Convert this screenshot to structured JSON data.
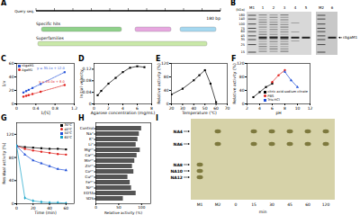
{
  "chart_data": [
    {
      "panel": "C",
      "type": "line",
      "x_label": "1/[S]",
      "y_label": "1/v",
      "xlim": [
        0,
        1.2
      ],
      "xticks": [
        0,
        0.4,
        0.8,
        1.2
      ],
      "ylim": [
        0,
        60
      ],
      "yticks": [
        0,
        20,
        40,
        60
      ],
      "legend": "top-left",
      "series": [
        {
          "name": "rAgaM1",
          "color": "#1f4fd8",
          "marker": "square",
          "line_style": "dashed",
          "x": [
            0.14,
            0.2,
            0.25,
            0.33,
            0.5,
            1
          ],
          "values": [
            16.9,
            19,
            20.8,
            23.6,
            29.5,
            47
          ],
          "equation": "y = 35.1x + 12.0"
        },
        {
          "name": "AgaM1",
          "color": "#e0211d",
          "marker": "circle",
          "line_style": "dashed",
          "x": [
            0.14,
            0.2,
            0.25,
            0.33,
            0.5,
            1
          ],
          "values": [
            10.8,
            12,
            13,
            14.6,
            18,
            28
          ],
          "equation": "y = 20.0x + 8.0"
        }
      ]
    },
    {
      "panel": "D",
      "type": "line",
      "x_label": "Agarose concentration (mg/mL)",
      "y_label": "Initial velocity",
      "xlim": [
        0,
        8
      ],
      "xticks": [
        0,
        2,
        4,
        6,
        8
      ],
      "ylim": [
        0,
        0.14
      ],
      "yticks": [
        0,
        0.04,
        0.08,
        0.12
      ],
      "x": [
        0.5,
        1,
        2,
        3,
        4,
        5,
        6,
        7
      ],
      "values": [
        0.03,
        0.045,
        0.07,
        0.09,
        0.11,
        0.125,
        0.13,
        0.127
      ],
      "color": "#000000",
      "marker": "square"
    },
    {
      "panel": "E",
      "type": "line",
      "x_label": "Temperature (℃)",
      "y_label": "Relative activity (%)",
      "xlim": [
        20,
        70
      ],
      "xticks": [
        20,
        30,
        40,
        50,
        60,
        70
      ],
      "ylim": [
        0,
        120
      ],
      "yticks": [
        0,
        40,
        80,
        120
      ],
      "x": [
        20,
        30,
        40,
        45,
        50,
        55,
        60
      ],
      "values": [
        28,
        45,
        70,
        85,
        100,
        60,
        5
      ],
      "color": "#000000",
      "marker": "square"
    },
    {
      "panel": "F",
      "type": "line",
      "x_label": "pH",
      "y_label": "Relative activity (%)",
      "xlim": [
        2,
        12
      ],
      "xticks": [
        2,
        4,
        6,
        8,
        10,
        12
      ],
      "ylim": [
        0,
        120
      ],
      "yticks": [
        0,
        40,
        80,
        120
      ],
      "legend": "bottom-right",
      "series": [
        {
          "name": "citric acid-sodium citrate",
          "color": "#000000",
          "marker": "square",
          "x": [
            3,
            4,
            5,
            6
          ],
          "values": [
            20,
            35,
            50,
            60
          ]
        },
        {
          "name": "PBS",
          "color": "#e0211d",
          "marker": "circle",
          "x": [
            6,
            7,
            8
          ],
          "values": [
            65,
            85,
            100
          ]
        },
        {
          "name": "Tris-HCl",
          "color": "#1f4fd8",
          "marker": "triangle",
          "x": [
            8,
            9,
            10
          ],
          "values": [
            95,
            70,
            50
          ]
        }
      ]
    },
    {
      "panel": "G",
      "type": "line",
      "x_label": "Time (min)",
      "y_label": "Residual activity (%)",
      "xlim": [
        0,
        70
      ],
      "xticks": [
        0,
        20,
        40,
        60
      ],
      "ylim": [
        0,
        140
      ],
      "yticks": [
        0,
        40,
        80,
        120
      ],
      "legend": "top-right",
      "series": [
        {
          "name": "30℃",
          "color": "#000000",
          "marker": "square",
          "x": [
            0,
            10,
            20,
            30,
            40,
            50,
            60
          ],
          "values": [
            100,
            98,
            97,
            96,
            95,
            95,
            94
          ]
        },
        {
          "name": "40℃",
          "color": "#e0211d",
          "marker": "circle",
          "x": [
            0,
            10,
            20,
            30,
            40,
            50,
            60
          ],
          "values": [
            100,
            95,
            92,
            90,
            88,
            86,
            85
          ]
        },
        {
          "name": "50℃",
          "color": "#1f4fd8",
          "marker": "triangle",
          "x": [
            0,
            10,
            20,
            30,
            40,
            50,
            60
          ],
          "values": [
            100,
            85,
            75,
            70,
            65,
            60,
            58
          ]
        },
        {
          "name": "60℃",
          "color": "#16a3c9",
          "marker": "diamond",
          "x": [
            0,
            10,
            20,
            30,
            40,
            50,
            60
          ],
          "values": [
            100,
            10,
            5,
            3,
            2,
            2,
            1
          ]
        }
      ]
    },
    {
      "panel": "H",
      "type": "bar",
      "orientation": "horizontal",
      "x_label": "Relative activity (%)",
      "xlim": [
        0,
        120
      ],
      "xticks": [
        0,
        50,
        100
      ],
      "color": "#555555",
      "categories": [
        "Control",
        "Na⁺",
        "K⁺",
        "Li⁺",
        "Mg²⁺",
        "Ca²⁺",
        "Mn²⁺",
        "Zn²⁺",
        "Co²⁺",
        "Cu²⁺",
        "Fe³⁺",
        "Ni²⁺",
        "EDTA",
        "SDS"
      ],
      "values": [
        100,
        95,
        92,
        88,
        97,
        90,
        85,
        80,
        83,
        70,
        75,
        78,
        88,
        60
      ]
    }
  ],
  "figures": {
    "A": {
      "panel": "A",
      "query": "Query seq.",
      "tracks": [
        "Specific hits",
        "Superfamilies"
      ],
      "scale_label": "180 bp"
    },
    "B": {
      "panel": "B",
      "unit": "(kDa)",
      "gels": [
        [
          "M1",
          "1",
          "2",
          "3",
          "4",
          "5"
        ],
        [
          "M2",
          "6"
        ]
      ],
      "markers": [
        180,
        140,
        100,
        75,
        60,
        45,
        35,
        25,
        15
      ],
      "target": {
        "label": "rAgaM1",
        "kDa": 40
      }
    },
    "I": {
      "panel": "I",
      "standards": [
        "NA4",
        "NA6",
        "NA8",
        "NA10",
        "NA12"
      ],
      "lanes": [
        "M1",
        "M2",
        "0",
        "15",
        "30",
        "45",
        "60",
        "120"
      ],
      "x_label": "min"
    }
  }
}
